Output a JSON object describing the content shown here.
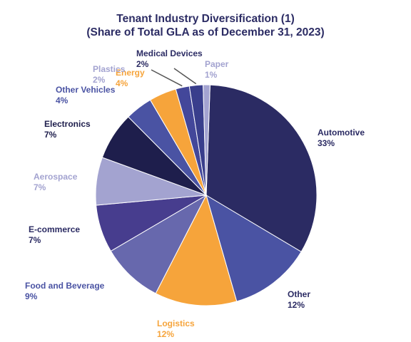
{
  "chart_data": {
    "type": "pie",
    "title": "Tenant Industry Diversification (1)",
    "subtitle": "(Share of Total GLA as of December 31, 2023)",
    "slices": [
      {
        "label": "Automotive",
        "value": 33,
        "display": "33%",
        "color": "#2b2b63"
      },
      {
        "label": "Other",
        "value": 12,
        "display": "12%",
        "color": "#4a53a3"
      },
      {
        "label": "Logistics",
        "value": 12,
        "display": "12%",
        "color": "#f6a43b"
      },
      {
        "label": "Food and Beverage",
        "value": 9,
        "display": "9%",
        "color": "#6768ad"
      },
      {
        "label": "E-commerce",
        "value": 7,
        "display": "7%",
        "color": "#473d8e"
      },
      {
        "label": "Aerospace",
        "value": 7,
        "display": "7%",
        "color": "#a3a3d0"
      },
      {
        "label": "Electronics",
        "value": 7,
        "display": "7%",
        "color": "#1e1e4c"
      },
      {
        "label": "Other Vehicles",
        "value": 4,
        "display": "4%",
        "color": "#4a53a3"
      },
      {
        "label": "Energy",
        "value": 4,
        "display": "4%",
        "color": "#f6a43b"
      },
      {
        "label": "Plastics",
        "value": 2,
        "display": "2%",
        "color": "#43479a"
      },
      {
        "label": "Medical Devices",
        "value": 2,
        "display": "2%",
        "color": "#393e8c"
      },
      {
        "label": "Paper",
        "value": 1,
        "display": "1%",
        "color": "#a3a3d0"
      }
    ]
  }
}
